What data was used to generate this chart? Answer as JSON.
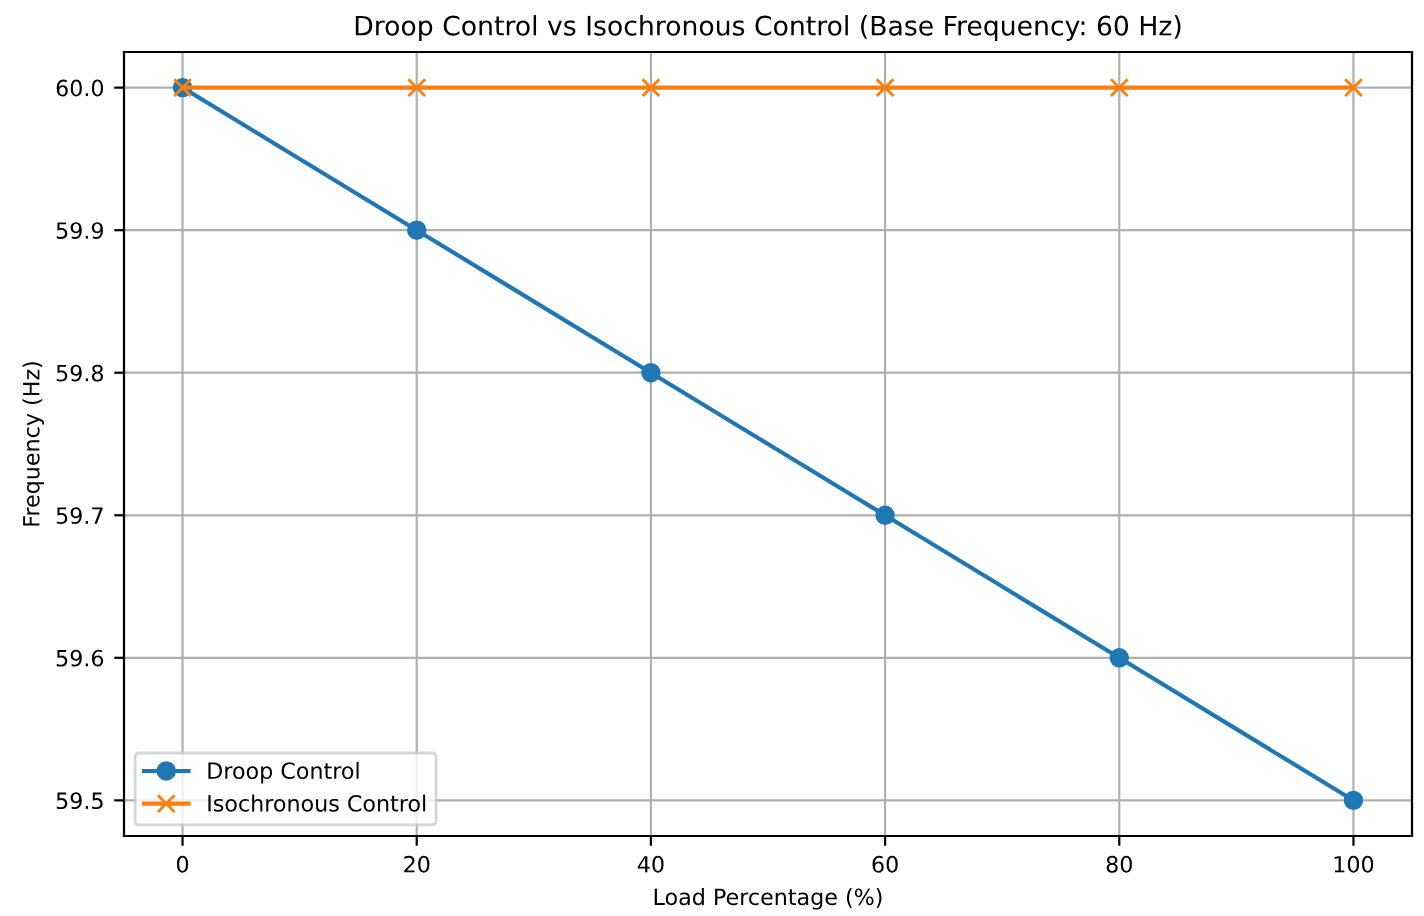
{
  "chart_data": {
    "type": "line",
    "title": "Droop Control vs Isochronous Control (Base Frequency: 60 Hz)",
    "xlabel": "Load Percentage (%)",
    "ylabel": "Frequency (Hz)",
    "x": [
      0,
      20,
      40,
      60,
      80,
      100
    ],
    "series": [
      {
        "name": "Droop Control",
        "color": "#1f77b4",
        "marker": "circle",
        "values": [
          60.0,
          59.9,
          59.8,
          59.7,
          59.6,
          59.5
        ]
      },
      {
        "name": "Isochronous Control",
        "color": "#ff7f0e",
        "marker": "cross",
        "values": [
          60.0,
          60.0,
          60.0,
          60.0,
          60.0,
          60.0
        ]
      }
    ],
    "xlim": [
      -5,
      105
    ],
    "xticks": [
      0,
      20,
      40,
      60,
      80,
      100
    ],
    "ylim": [
      59.475,
      60.025
    ],
    "yticks": [
      {
        "value": 59.5,
        "label": "59.5"
      },
      {
        "value": 59.6,
        "label": "59.6"
      },
      {
        "value": 59.7,
        "label": "59.7"
      },
      {
        "value": 59.8,
        "label": "59.8"
      },
      {
        "value": 59.9,
        "label": "59.9"
      },
      {
        "value": 60.0,
        "label": "60.0"
      }
    ],
    "grid": true,
    "legend": "bottom left",
    "line_style": "solid"
  }
}
